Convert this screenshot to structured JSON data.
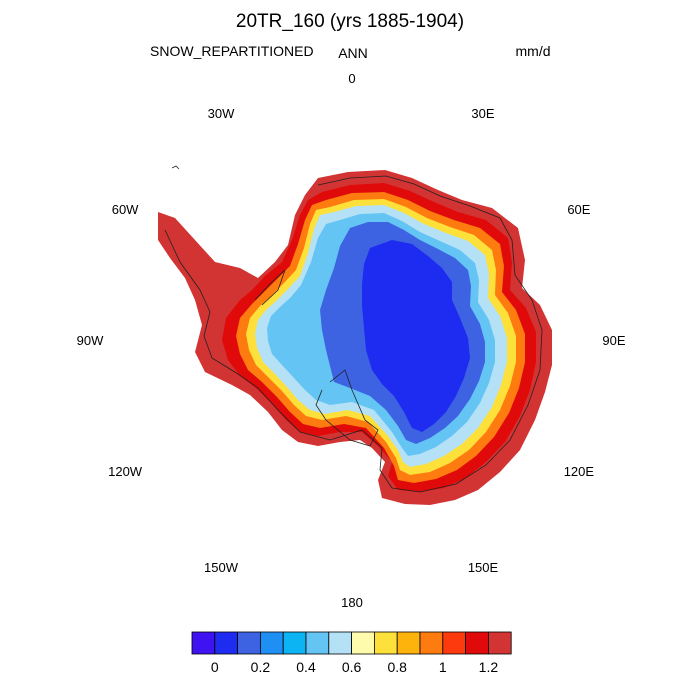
{
  "figure": {
    "title": "20TR_160 (yrs 1885-1904)",
    "variable": "SNOW_REPARTITIONED",
    "season": "ANN",
    "units": "mm/d"
  },
  "map": {
    "projection": "south-polar-stereographic",
    "longitude_labels": [
      {
        "lon": 0,
        "label": "0"
      },
      {
        "lon": 30,
        "label": "30E"
      },
      {
        "lon": 60,
        "label": "60E"
      },
      {
        "lon": 90,
        "label": "90E"
      },
      {
        "lon": 120,
        "label": "120E"
      },
      {
        "lon": 150,
        "label": "150E"
      },
      {
        "lon": 180,
        "label": "180"
      },
      {
        "lon": -150,
        "label": "150W"
      },
      {
        "lon": -120,
        "label": "120W"
      },
      {
        "lon": -90,
        "label": "90W"
      },
      {
        "lon": -60,
        "label": "60W"
      },
      {
        "lon": -30,
        "label": "30W"
      }
    ]
  },
  "colorbar": {
    "colors": [
      "#3f12f2",
      "#1e2bf0",
      "#3d63e2",
      "#1f8ff3",
      "#0db4f4",
      "#64c5f5",
      "#b5e1f6",
      "#fffbac",
      "#fee03a",
      "#fdb20c",
      "#fd7b0f",
      "#fd3a0d",
      "#e00a0a",
      "#d23434"
    ],
    "tick_labels": [
      "0",
      "0.2",
      "0.4",
      "0.6",
      "0.8",
      "1",
      "1.2"
    ]
  },
  "chart_data": {
    "type": "heatmap",
    "title": "20TR_160 (yrs 1885-1904)",
    "variable": "SNOW_REPARTITIONED",
    "season": "ANN",
    "units": "mm/d",
    "levels": [
      0,
      0.1,
      0.2,
      0.3,
      0.4,
      0.5,
      0.6,
      0.7,
      0.8,
      0.9,
      1.0,
      1.1,
      1.2
    ],
    "region": "Antarctica",
    "field_summary": {
      "east_antarctic_plateau": "< 0.1",
      "interior": "0.1-0.3",
      "coastal_band": "0.6-1.1",
      "peninsula_and_coast": "> 1.2"
    }
  }
}
